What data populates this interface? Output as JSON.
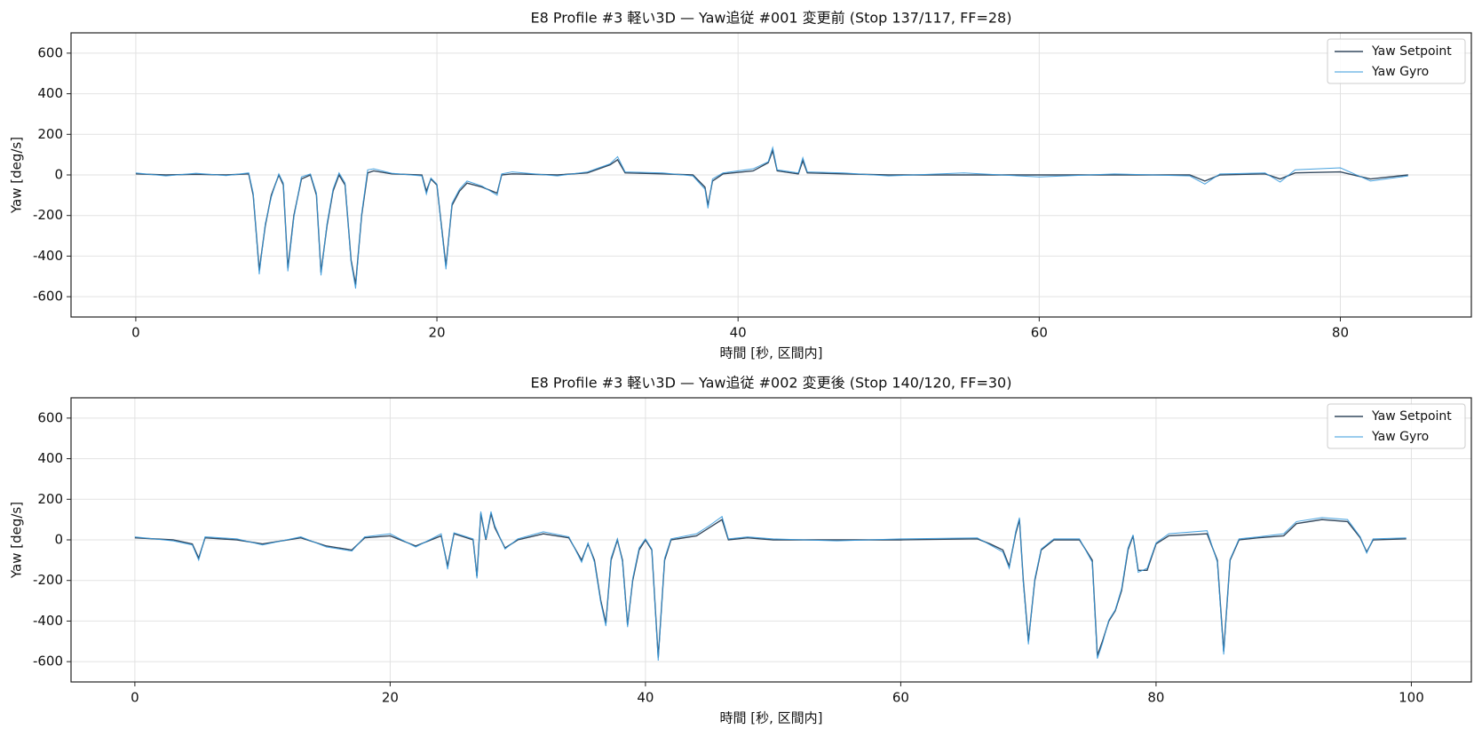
{
  "chart_data": [
    {
      "type": "line",
      "title": "E8 Profile #3 軽い3D — Yaw追従  #001 変更前 (Stop 137/117, FF=28)",
      "xlabel": "時間 [秒, 区間内]",
      "ylabel": "Yaw [deg/s]",
      "xlim": [
        -4.3,
        88.7
      ],
      "ylim": [
        -700,
        700
      ],
      "xticks": [
        0,
        20,
        40,
        60,
        80
      ],
      "yticks": [
        -600,
        -400,
        -200,
        0,
        200,
        400,
        600
      ],
      "grid": true,
      "legend": "upper right",
      "x": [
        0,
        2,
        4,
        6,
        7.5,
        7.8,
        8.2,
        8.6,
        9,
        9.5,
        9.8,
        10.1,
        10.5,
        11,
        11.6,
        12,
        12.3,
        12.7,
        13.1,
        13.5,
        13.9,
        14.3,
        14.6,
        15,
        15.4,
        15.8,
        17,
        19,
        19.3,
        19.6,
        20,
        20.3,
        20.6,
        21,
        21.5,
        22,
        23,
        24,
        24.3,
        25,
        28,
        30,
        31.5,
        32,
        32.5,
        35,
        37,
        37.8,
        38,
        38.3,
        39,
        41,
        42,
        42.3,
        42.6,
        44,
        44.3,
        44.6,
        47,
        50,
        55,
        60,
        65,
        70,
        71,
        72,
        75,
        76,
        77,
        80,
        82,
        84.5
      ],
      "series": [
        {
          "name": "Yaw Setpoint",
          "color": "#34495e",
          "values": [
            5,
            0,
            3,
            0,
            5,
            -100,
            -470,
            -250,
            -100,
            0,
            -50,
            -460,
            -200,
            -20,
            0,
            -100,
            -480,
            -250,
            -80,
            0,
            -50,
            -420,
            -540,
            -200,
            10,
            20,
            5,
            0,
            -80,
            -20,
            -50,
            -250,
            -450,
            -150,
            -80,
            -40,
            -60,
            -90,
            0,
            5,
            0,
            10,
            50,
            75,
            10,
            5,
            0,
            -60,
            -150,
            -30,
            5,
            20,
            60,
            120,
            20,
            5,
            70,
            10,
            5,
            0,
            0,
            0,
            0,
            0,
            -30,
            0,
            5,
            -20,
            10,
            15,
            -20,
            0
          ]
        },
        {
          "name": "Yaw Gyro",
          "color": "#3498db",
          "values": [
            10,
            -5,
            8,
            -3,
            10,
            -90,
            -490,
            -240,
            -110,
            5,
            -40,
            -475,
            -210,
            -10,
            5,
            -90,
            -495,
            -240,
            -70,
            10,
            -40,
            -430,
            -560,
            -190,
            25,
            30,
            8,
            -5,
            -95,
            -15,
            -45,
            -260,
            -465,
            -140,
            -70,
            -30,
            -55,
            -100,
            5,
            15,
            -5,
            15,
            55,
            90,
            15,
            10,
            -5,
            -70,
            -165,
            -20,
            10,
            30,
            65,
            135,
            25,
            10,
            85,
            15,
            10,
            -5,
            10,
            -10,
            5,
            -5,
            -45,
            5,
            10,
            -35,
            25,
            35,
            -30,
            -5
          ]
        }
      ]
    },
    {
      "type": "line",
      "title": "E8 Profile #3 軽い3D — Yaw追従  #002 変更後 (Stop 140/120, FF=30)",
      "xlabel": "時間 [秒, 区間内]",
      "ylabel": "Yaw [deg/s]",
      "xlim": [
        -5,
        104.7
      ],
      "ylim": [
        -700,
        700
      ],
      "xticks": [
        0,
        20,
        40,
        60,
        80,
        100
      ],
      "yticks": [
        -600,
        -400,
        -200,
        0,
        200,
        400,
        600
      ],
      "grid": true,
      "legend": "upper right",
      "x": [
        0,
        3,
        4.5,
        5,
        5.5,
        8,
        10,
        13,
        15,
        17,
        18,
        20,
        22,
        24,
        24.5,
        25,
        26.5,
        26.8,
        27.1,
        27.5,
        27.9,
        28.2,
        29,
        30,
        32,
        34,
        35,
        35.5,
        36,
        36.5,
        36.9,
        37.3,
        37.8,
        38.2,
        38.6,
        39,
        39.5,
        40,
        40.5,
        41,
        41.5,
        42,
        44,
        45,
        46,
        46.5,
        48,
        50,
        55,
        60,
        66,
        67,
        68,
        68.5,
        69,
        69.3,
        69.6,
        70,
        70.5,
        71,
        72,
        74,
        75,
        75.4,
        75.8,
        76.3,
        76.8,
        77.3,
        77.8,
        78.2,
        78.6,
        79.3,
        80,
        81,
        84,
        84.8,
        85.3,
        85.8,
        86.5,
        88,
        90,
        91,
        93,
        95,
        96,
        96.5,
        97,
        99.6
      ],
      "series": [
        {
          "name": "Yaw Setpoint",
          "color": "#34495e",
          "values": [
            10,
            0,
            -20,
            -90,
            10,
            0,
            -20,
            10,
            -30,
            -50,
            10,
            20,
            -30,
            20,
            -130,
            30,
            0,
            -180,
            130,
            0,
            130,
            60,
            -40,
            0,
            30,
            10,
            -100,
            -20,
            -100,
            -300,
            -410,
            -100,
            0,
            -100,
            -420,
            -200,
            -50,
            0,
            -50,
            -580,
            -100,
            0,
            20,
            60,
            100,
            0,
            10,
            0,
            0,
            0,
            5,
            -20,
            -50,
            -130,
            30,
            100,
            -200,
            -500,
            -200,
            -50,
            0,
            0,
            -100,
            -570,
            -500,
            -400,
            -350,
            -250,
            -50,
            20,
            -150,
            -150,
            -20,
            20,
            30,
            -100,
            -550,
            -100,
            0,
            10,
            20,
            80,
            100,
            90,
            10,
            -60,
            0,
            5
          ]
        },
        {
          "name": "Yaw Gyro",
          "color": "#3498db",
          "values": [
            15,
            -5,
            -25,
            -100,
            15,
            5,
            -25,
            15,
            -35,
            -55,
            15,
            30,
            -35,
            30,
            -145,
            35,
            5,
            -190,
            140,
            5,
            140,
            70,
            -45,
            5,
            40,
            15,
            -110,
            -15,
            -110,
            -310,
            -425,
            -90,
            5,
            -110,
            -430,
            -190,
            -40,
            5,
            -45,
            -595,
            -90,
            5,
            30,
            70,
            115,
            5,
            15,
            5,
            -5,
            5,
            10,
            -25,
            -60,
            -140,
            40,
            110,
            -210,
            -515,
            -190,
            -45,
            5,
            5,
            -110,
            -585,
            -510,
            -395,
            -345,
            -240,
            -40,
            25,
            -160,
            -140,
            -15,
            30,
            45,
            -110,
            -565,
            -95,
            5,
            15,
            30,
            90,
            110,
            100,
            15,
            -65,
            5,
            10
          ]
        }
      ]
    }
  ]
}
